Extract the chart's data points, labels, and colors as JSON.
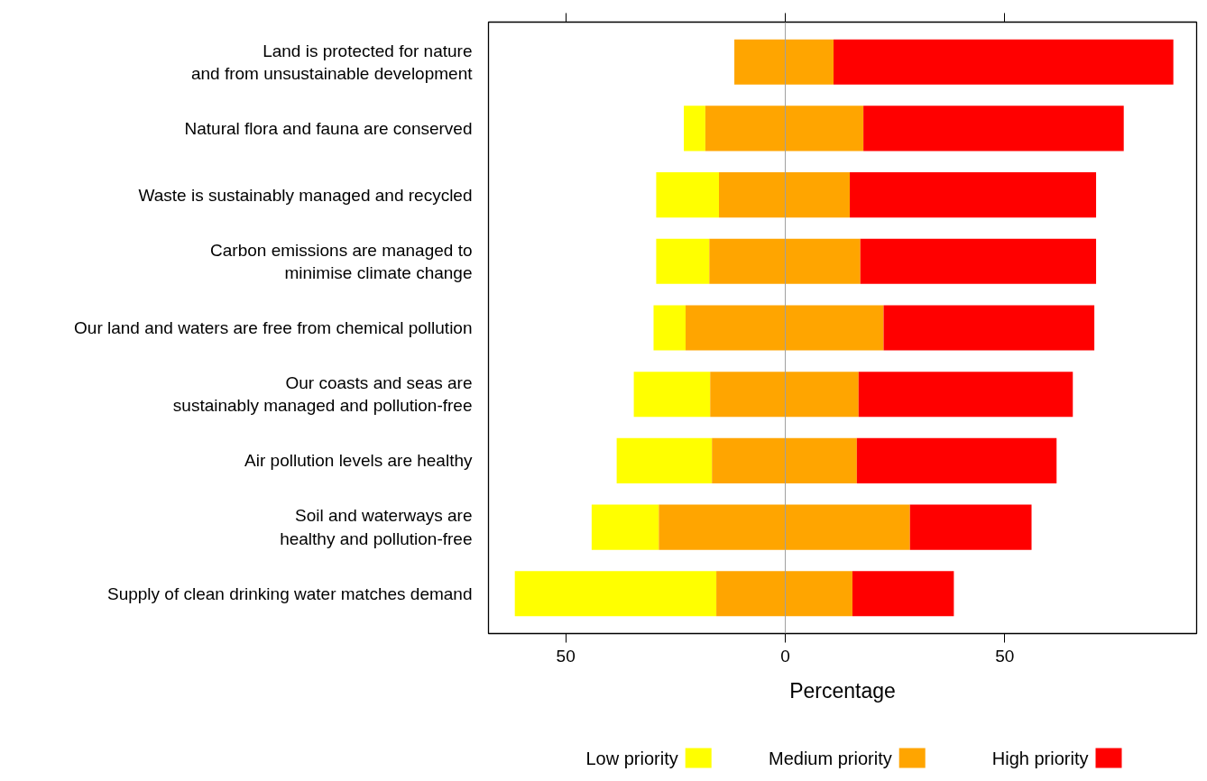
{
  "chart_data": {
    "type": "bar",
    "orientation": "horizontal",
    "xlabel": "Percentage",
    "categories": [
      "Land is protected for nature\nand from unsustainable development",
      "Natural flora and fauna are conserved",
      "Waste is sustainably managed and recycled",
      "Carbon emissions are managed to\nminimise climate change",
      "Our land and waters are free from chemical pollution",
      "Our coasts and seas are\nsustainably managed and pollution-free",
      "Air pollution levels are healthy",
      "Soil and waterways are\nhealthy and pollution-free",
      "Supply of clean drinking water matches demand"
    ],
    "series": [
      {
        "name": "Low priority",
        "color": "#ffff00",
        "base": [
          null,
          -23.1,
          -29.4,
          -29.4,
          -30.0,
          -34.5,
          -38.4,
          -44.1,
          -61.6
        ],
        "values": [
          null,
          4.9,
          14.3,
          12.1,
          7.3,
          17.4,
          21.7,
          15.3,
          45.9
        ]
      },
      {
        "name": "Medium priority",
        "color": "#ffa500",
        "base": [
          -11.6,
          -18.2,
          -15.1,
          -17.3,
          -22.7,
          -17.1,
          -16.7,
          -28.8,
          -15.7
        ],
        "values": [
          22.6,
          36.0,
          29.8,
          34.4,
          45.1,
          33.8,
          33.0,
          57.2,
          31.0
        ]
      },
      {
        "name": "High priority",
        "color": "#ff0000",
        "base": [
          11.0,
          17.8,
          14.7,
          17.1,
          22.4,
          16.7,
          16.3,
          28.4,
          15.3
        ],
        "values": [
          77.4,
          59.3,
          56.1,
          53.7,
          48.0,
          48.8,
          45.5,
          27.7,
          23.1
        ]
      }
    ],
    "xlim": [
      -67.6,
      93.7
    ],
    "xticks": [
      {
        "value": -50,
        "label": "50"
      },
      0,
      50
    ],
    "ref_lines": [
      {
        "axis": "x",
        "value": 0,
        "color": "#a0a0a0"
      }
    ],
    "grid": false,
    "legend": "bottom"
  }
}
